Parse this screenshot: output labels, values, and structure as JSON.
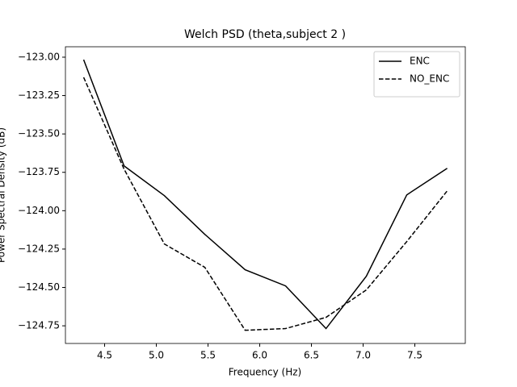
{
  "chart_data": {
    "type": "line",
    "title": "Welch PSD (theta,subject 2 )",
    "xlabel": "Frequency (Hz)",
    "ylabel": "Power Spectral Density (dB)",
    "x": [
      4.297,
      4.688,
      5.078,
      5.469,
      5.859,
      6.25,
      6.641,
      7.031,
      7.422,
      7.813
    ],
    "series": [
      {
        "name": "ENC",
        "color": "#000000",
        "linestyle": "solid",
        "values": [
          -123.016,
          -123.708,
          -123.902,
          -124.154,
          -124.385,
          -124.49,
          -124.768,
          -124.427,
          -123.897,
          -123.724
        ]
      },
      {
        "name": "NO_ENC",
        "color": "#000000",
        "linestyle": "dashed",
        "values": [
          -123.131,
          -123.729,
          -124.217,
          -124.369,
          -124.779,
          -124.768,
          -124.695,
          -124.516,
          -124.201,
          -123.871
        ]
      }
    ],
    "xlim": [
      4.121,
      7.988
    ],
    "xticks": [
      4.5,
      {
        "value": 5.0,
        "label": "5.0"
      },
      5.5,
      {
        "value": 6.0,
        "label": "6.0"
      },
      6.5,
      {
        "value": 7.0,
        "label": "7.0"
      },
      7.5
    ],
    "ylim": [
      -124.865,
      -122.932
    ],
    "yticks": [
      {
        "value": -123.0,
        "label": "−123.00"
      },
      {
        "value": -123.25,
        "label": "−123.25"
      },
      {
        "value": -123.5,
        "label": "−123.50"
      },
      {
        "value": -123.75,
        "label": "−123.75"
      },
      {
        "value": -124.0,
        "label": "−124.00"
      },
      {
        "value": -124.25,
        "label": "−124.25"
      },
      {
        "value": -124.5,
        "label": "−124.50"
      },
      {
        "value": -124.75,
        "label": "−124.75"
      }
    ],
    "grid": false,
    "legend": "upper right"
  }
}
